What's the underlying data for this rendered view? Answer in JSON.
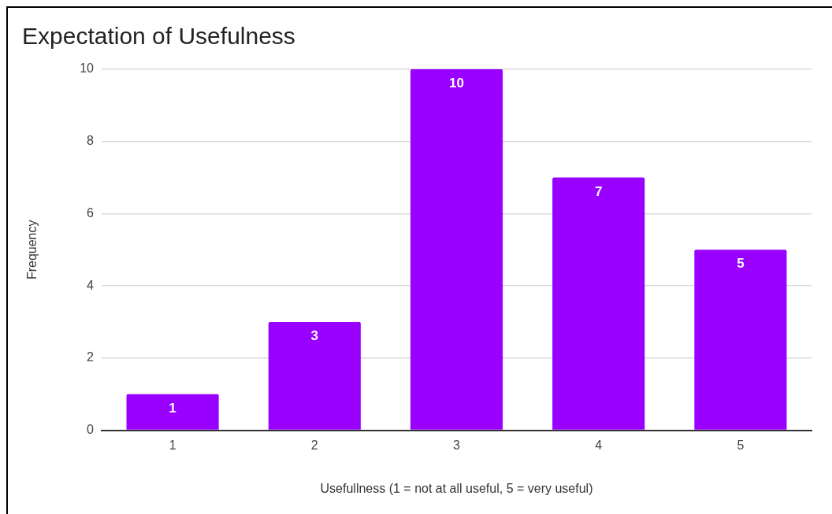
{
  "chart_data": {
    "type": "bar",
    "title": "Expectation of Usefulness",
    "xlabel": "Usefullness (1 = not at all useful, 5 = very useful)",
    "ylabel": "Frequency",
    "categories": [
      "1",
      "2",
      "3",
      "4",
      "5"
    ],
    "values": [
      1,
      3,
      10,
      7,
      5
    ],
    "color": "#9900ff",
    "ylim": [
      0,
      10
    ],
    "yticks": [
      0,
      2,
      4,
      6,
      8,
      10
    ],
    "grid": "y",
    "data_labels": true,
    "legend": false
  }
}
